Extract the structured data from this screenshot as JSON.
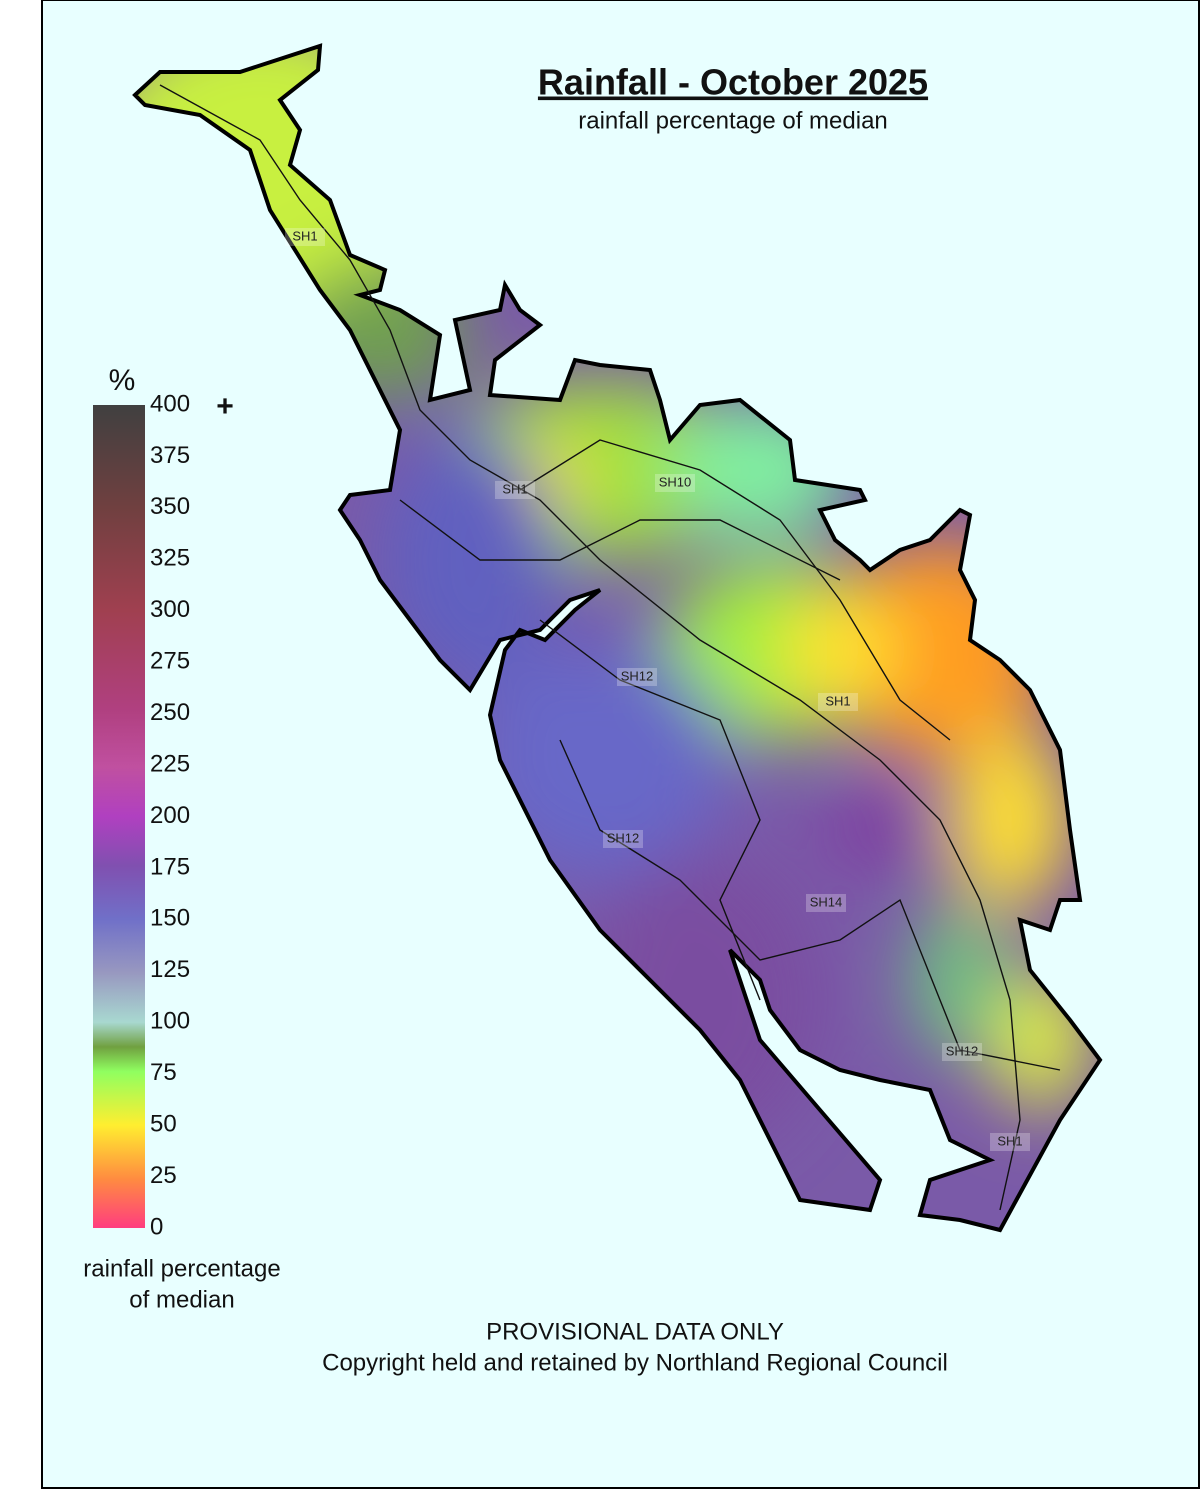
{
  "header": {
    "title": "Rainfall - October 2025",
    "subtitle": "rainfall percentage of median"
  },
  "legend": {
    "unit": "%",
    "ticks": [
      0,
      25,
      50,
      75,
      100,
      125,
      150,
      175,
      200,
      225,
      250,
      275,
      300,
      325,
      350,
      375,
      400
    ],
    "overflow": "+",
    "label": [
      "rainfall percentage",
      "of median"
    ]
  },
  "road_labels": [
    "SH1",
    "SH1",
    "SH10",
    "SH12",
    "SH1",
    "SH12",
    "SH14",
    "SH12",
    "SH1"
  ],
  "footer": {
    "notice": "PROVISIONAL DATA ONLY",
    "copyright": "Copyright held and retained by Northland Regional Council"
  }
}
